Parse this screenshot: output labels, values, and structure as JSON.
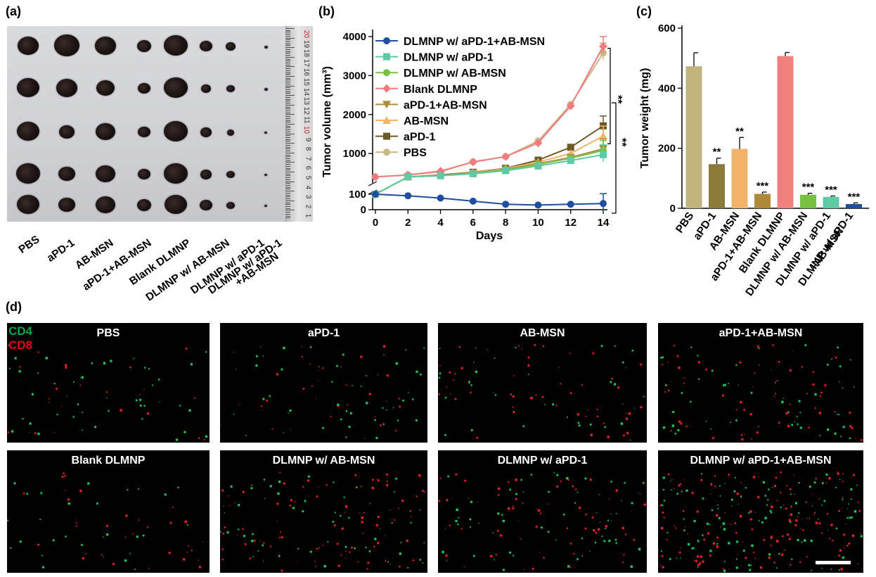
{
  "panels": {
    "a": "(a)",
    "b": "(b)",
    "c": "(c)",
    "d": "(d)"
  },
  "photo": {
    "groups": [
      "PBS",
      "aPD-1",
      "AB-MSN",
      "aPD-1+AB-MSN",
      "Blank DLMNP",
      "DLMNP w/ AB-MSN",
      "DLMNP w/ aPD-1",
      "DLMNP w/ aPD-1\n+AB-MSN"
    ],
    "group_labels": [
      "PBS",
      "aPD-1",
      "AB-MSN",
      "aPD-1+AB-MSN",
      "Blank DLMNP",
      "DLMNP w/ AB-MSN",
      "DLMNP w/ aPD-1",
      "DLMNP w/ aPD-1",
      "+AB-MSN"
    ],
    "ruler_numbers": [
      "20",
      "19",
      "18",
      "17",
      "16",
      "15",
      "14",
      "13",
      "12",
      "11",
      "10",
      "9",
      "8",
      "7",
      "6",
      "5",
      "4",
      "3",
      "2",
      "1"
    ]
  },
  "chart_data": [
    {
      "type": "line",
      "xlabel": "Days",
      "ylabel": "Tumor volume (mm³)",
      "x": [
        0,
        2,
        4,
        6,
        8,
        10,
        12,
        14
      ],
      "x_ticks": [
        "0",
        "2",
        "4",
        "6",
        "8",
        "10",
        "12",
        "14"
      ],
      "y_ticks": [
        "0",
        "100",
        "1000",
        "2000",
        "3000",
        "4000"
      ],
      "y_axis_break": true,
      "series": [
        {
          "name": "DLMNP w/ aPD-1+AB-MSN",
          "color": "#1f4ea1",
          "marker": "circle",
          "values": [
            100,
            90,
            75,
            55,
            35,
            30,
            35,
            40
          ]
        },
        {
          "name": "DLMNP w/ aPD-1",
          "color": "#5fc9a3",
          "marker": "square",
          "values": [
            100,
            400,
            430,
            480,
            560,
            680,
            820,
            970
          ]
        },
        {
          "name": "DLMNP w/ AB-MSN",
          "color": "#7ac143",
          "marker": "circle",
          "values": [
            100,
            400,
            430,
            490,
            580,
            720,
            880,
            1080
          ]
        },
        {
          "name": "Blank DLMNP",
          "color": "#f07c82",
          "marker": "diamond",
          "values": [
            400,
            450,
            550,
            780,
            920,
            1270,
            2220,
            3750
          ]
        },
        {
          "name": "aPD-1+AB-MSN",
          "color": "#b08a3c",
          "marker": "triangle-down",
          "values": [
            100,
            400,
            440,
            500,
            590,
            740,
            900,
            1120
          ]
        },
        {
          "name": "AB-MSN",
          "color": "#f2b46b",
          "marker": "triangle-up",
          "values": [
            100,
            400,
            440,
            510,
            610,
            780,
            1000,
            1450
          ]
        },
        {
          "name": "aPD-1",
          "color": "#6b5a26",
          "marker": "square",
          "values": [
            100,
            400,
            450,
            520,
            620,
            830,
            1160,
            1710
          ]
        },
        {
          "name": "PBS",
          "color": "#c9b784",
          "marker": "circle",
          "values": [
            400,
            450,
            530,
            790,
            920,
            1320,
            2260,
            3580
          ]
        }
      ],
      "annotations": [
        "**",
        "**"
      ]
    },
    {
      "type": "bar",
      "ylabel": "Tumor weight (mg)",
      "categories": [
        "PBS",
        "aPD-1",
        "AB-MSN",
        "aPD-1+AB-MSN",
        "Blank DLMNP",
        "DLMNP w/ AB-MSN",
        "DLMNP w/ aPD-1",
        "DLMNP w/ aPD-1\n+AB-MSN"
      ],
      "category_labels": [
        "PBS",
        "aPD-1",
        "AB-MSN",
        "aPD-1+AB-MSN",
        "Blank DLMNP",
        "DLMNP w/ AB-MSN",
        "DLMNP w/ aPD-1",
        "DLMNP w/ aPD-1",
        "+AB-MSN"
      ],
      "values": [
        473,
        147,
        198,
        48,
        507,
        45,
        38,
        14
      ],
      "errors": [
        45,
        20,
        38,
        6,
        12,
        5,
        3,
        4
      ],
      "colors": [
        "#c2b27c",
        "#8c7a3a",
        "#f2b46b",
        "#b08a3c",
        "#f08080",
        "#7ac143",
        "#5fc9a3",
        "#1f4ea1"
      ],
      "significance": [
        "",
        "**",
        "**",
        "***",
        "",
        "***",
        "***",
        "***"
      ],
      "ylim": [
        0,
        600
      ],
      "y_ticks": [
        "0",
        "200",
        "400",
        "600"
      ]
    }
  ],
  "micrographs": {
    "legend_cd4": "CD4",
    "legend_cd8": "CD8",
    "titles": [
      "PBS",
      "aPD-1",
      "AB-MSN",
      "aPD-1+AB-MSN",
      "Blank DLMNP",
      "DLMNP w/ AB-MSN",
      "DLMNP w/ aPD-1",
      "DLMNP w/ aPD-1+AB-MSN"
    ],
    "cd4_color": "#22c35a",
    "cd8_color": "#e8202a"
  }
}
